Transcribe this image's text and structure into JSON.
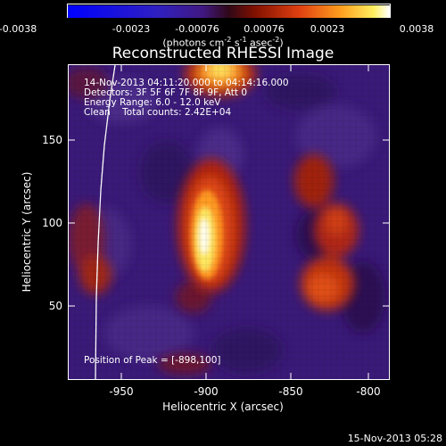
{
  "colorbar": {
    "ticks": [
      "-0.0038",
      "-0.0023",
      "-0.00076",
      "0.00076",
      "0.0023",
      "0.0038"
    ],
    "units_prefix": "(photons cm",
    "units_sup1": "-2",
    "units_mid": " s",
    "units_sup2": "-1",
    "units_mid2": " asec",
    "units_sup3": "-2",
    "units_suffix": ")"
  },
  "title": "Reconstructed RHESSI Image",
  "info": {
    "line1": "14-Nov-2013 04:11:20.000 to 04:14:16.000",
    "line2": "Detectors: 3F 5F 6F 7F 8F 9F, Att 0",
    "line3": "Energy Range: 6.0 - 12.0 keV",
    "line4": "Clean    Total counts: 2.42E+04",
    "peak": "Position of Peak = [-898,100]"
  },
  "axes": {
    "xlabel": "Heliocentric X (arcsec)",
    "ylabel": "Heliocentric Y (arcsec)",
    "xticks": [
      "-950",
      "-900",
      "-850",
      "-800"
    ],
    "yticks": [
      "150",
      "100",
      "50"
    ]
  },
  "footer": "15-Nov-2013 05:28",
  "colors": {
    "background_low": "#3a1a78",
    "background_mid": "#4a2a86",
    "accent_dark": "#5a1020",
    "flare_red": "#c02008",
    "flare_orange": "#ff8020",
    "flare_yellow": "#ffe860",
    "flare_white": "#fffff0"
  }
}
